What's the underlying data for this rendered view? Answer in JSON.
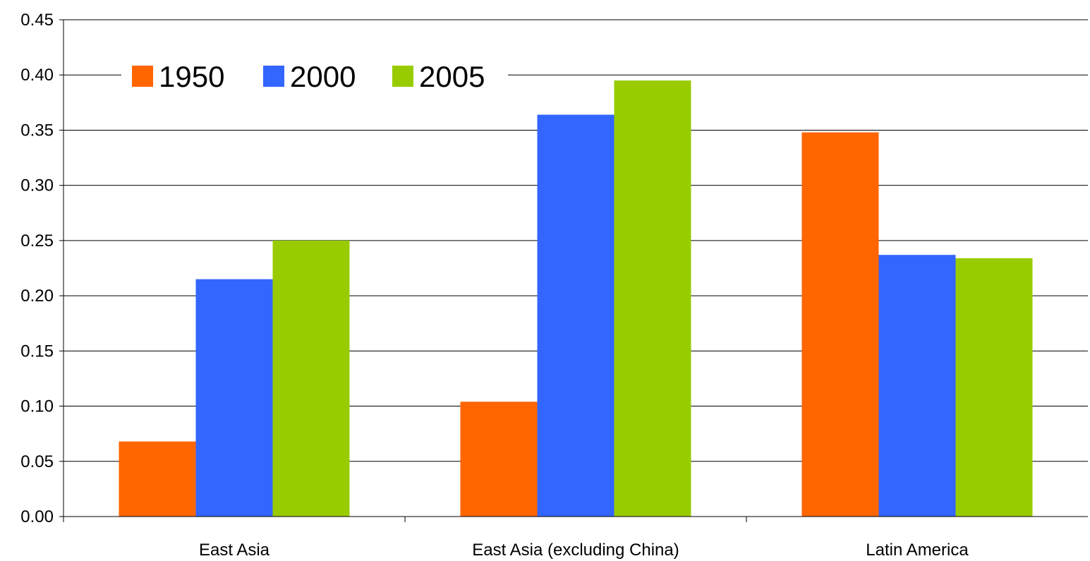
{
  "chart_data": {
    "type": "bar",
    "categories": [
      "East Asia",
      "East Asia (excluding China)",
      "Latin America"
    ],
    "series": [
      {
        "name": "1950",
        "color": "#FF6600",
        "values": [
          0.068,
          0.104,
          0.348
        ]
      },
      {
        "name": "2000",
        "color": "#3366FF",
        "values": [
          0.215,
          0.364,
          0.237
        ]
      },
      {
        "name": "2005",
        "color": "#99CC00",
        "values": [
          0.25,
          0.395,
          0.234
        ]
      }
    ],
    "ylim": [
      0,
      0.45
    ],
    "yticks": [
      "0.00",
      "0.05",
      "0.10",
      "0.15",
      "0.20",
      "0.25",
      "0.30",
      "0.35",
      "0.40",
      "0.45"
    ],
    "grid": true,
    "legend_position": "top-left"
  }
}
